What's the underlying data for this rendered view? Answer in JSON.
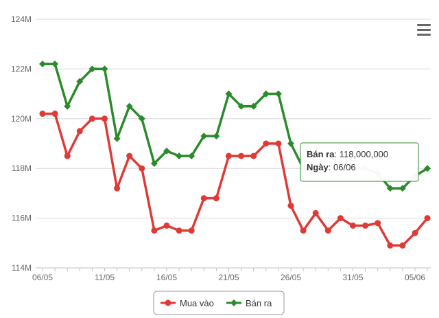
{
  "chart_data": {
    "type": "line",
    "title": "",
    "xlabel": "",
    "ylabel": "",
    "ylim": [
      114000000,
      124000000
    ],
    "y_tick_values": [
      114000000,
      116000000,
      118000000,
      120000000,
      122000000,
      124000000
    ],
    "y_tick_labels": [
      "114M",
      "116M",
      "118M",
      "120M",
      "122M",
      "124M"
    ],
    "x": [
      "06/05",
      "07/05",
      "08/05",
      "09/05",
      "10/05",
      "11/05",
      "12/05",
      "13/05",
      "14/05",
      "15/05",
      "16/05",
      "17/05",
      "18/05",
      "19/05",
      "20/05",
      "21/05",
      "22/05",
      "23/05",
      "24/05",
      "25/05",
      "26/05",
      "27/05",
      "28/05",
      "29/05",
      "30/05",
      "31/05",
      "01/06",
      "02/06",
      "03/06",
      "04/06",
      "05/06",
      "06/06"
    ],
    "x_tick_labels": [
      "06/05",
      "11/05",
      "16/05",
      "21/05",
      "26/05",
      "31/05",
      "05/06"
    ],
    "grid": true,
    "legend_position": "bottom",
    "series": [
      {
        "name": "Mua vào",
        "color": "#e03a36",
        "values": [
          120200000,
          120200000,
          118500000,
          119500000,
          120000000,
          120000000,
          117200000,
          118500000,
          118000000,
          115500000,
          115700000,
          115500000,
          115500000,
          116800000,
          116800000,
          118500000,
          118500000,
          118500000,
          119000000,
          119000000,
          116500000,
          115500000,
          116200000,
          115500000,
          116000000,
          115700000,
          115700000,
          115800000,
          114900000,
          114900000,
          115400000,
          116000000
        ]
      },
      {
        "name": "Bán ra",
        "color": "#2b8a2b",
        "values": [
          122200000,
          122200000,
          120500000,
          121500000,
          122000000,
          122000000,
          119200000,
          120500000,
          120000000,
          118200000,
          118700000,
          118500000,
          118500000,
          119300000,
          119300000,
          121000000,
          120500000,
          120500000,
          121000000,
          121000000,
          119000000,
          118000000,
          118000000,
          118500000,
          118200000,
          118000000,
          118000000,
          117800000,
          117200000,
          117200000,
          117700000,
          118000000
        ]
      }
    ],
    "tooltip": {
      "label1": "Bán ra",
      "value1": ": 118,000,000",
      "label2": "Ngày",
      "value2": ": 06/06",
      "border_color": "#2b8a2b"
    }
  }
}
